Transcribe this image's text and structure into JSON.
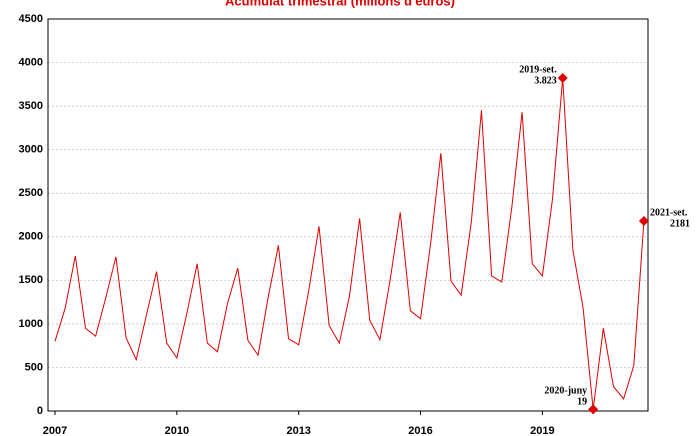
{
  "chart_data": {
    "type": "line",
    "title": "Acumulat trimestral (milions d'euros)",
    "x": [
      2007,
      2007.25,
      2007.5,
      2007.75,
      2008,
      2008.25,
      2008.5,
      2008.75,
      2009,
      2009.25,
      2009.5,
      2009.75,
      2010,
      2010.25,
      2010.5,
      2010.75,
      2011,
      2011.25,
      2011.5,
      2011.75,
      2012,
      2012.25,
      2012.5,
      2012.75,
      2013,
      2013.25,
      2013.5,
      2013.75,
      2014,
      2014.25,
      2014.5,
      2014.75,
      2015,
      2015.25,
      2015.5,
      2015.75,
      2016,
      2016.25,
      2016.5,
      2016.75,
      2017,
      2017.25,
      2017.5,
      2017.75,
      2018,
      2018.25,
      2018.5,
      2018.75,
      2019,
      2019.25,
      2019.5,
      2019.75,
      2020,
      2020.25,
      2020.5,
      2020.75,
      2021,
      2021.25,
      2021.5
    ],
    "series": [
      {
        "color": "#e00000",
        "values": [
          800,
          1180,
          1780,
          950,
          860,
          1300,
          1770,
          840,
          590,
          1100,
          1600,
          780,
          610,
          1130,
          1690,
          780,
          680,
          1240,
          1640,
          810,
          640,
          1310,
          1900,
          830,
          760,
          1390,
          2120,
          980,
          780,
          1320,
          2210,
          1040,
          820,
          1500,
          2280,
          1150,
          1060,
          1930,
          2960,
          1490,
          1330,
          2170,
          3450,
          1550,
          1480,
          2350,
          3430,
          1690,
          1550,
          2440,
          3823,
          1850,
          1190,
          19,
          950,
          280,
          140,
          520,
          2181
        ],
        "value_labels": [
          null,
          null,
          null,
          null,
          null,
          null,
          null,
          null,
          null,
          null,
          null,
          null,
          null,
          null,
          null,
          null,
          null,
          null,
          null,
          null,
          null,
          null,
          null,
          null,
          null,
          null,
          null,
          null,
          null,
          null,
          null,
          null,
          null,
          null,
          null,
          null,
          null,
          null,
          null,
          null,
          null,
          null,
          null,
          null,
          null,
          null,
          null,
          null,
          null,
          null,
          "3.823",
          null,
          null,
          "19",
          null,
          null,
          null,
          null,
          "2181"
        ],
        "point_labels": [
          null,
          null,
          null,
          null,
          null,
          null,
          null,
          null,
          null,
          null,
          null,
          null,
          null,
          null,
          null,
          null,
          null,
          null,
          null,
          null,
          null,
          null,
          null,
          null,
          null,
          null,
          null,
          null,
          null,
          null,
          null,
          null,
          null,
          null,
          null,
          null,
          null,
          null,
          null,
          null,
          null,
          null,
          null,
          null,
          null,
          null,
          null,
          null,
          null,
          null,
          "2019-set.",
          null,
          null,
          "2020-juny",
          null,
          null,
          null,
          null,
          "2021-set."
        ]
      }
    ],
    "xlim": [
      2007,
      2021.6
    ],
    "xticks": [
      2007,
      2010,
      2013,
      2016,
      2019
    ],
    "ylim": [
      0,
      4500
    ],
    "yticks": [
      0,
      500,
      1000,
      1500,
      2000,
      2500,
      3000,
      3500,
      4000,
      4500
    ],
    "grid": true
  }
}
